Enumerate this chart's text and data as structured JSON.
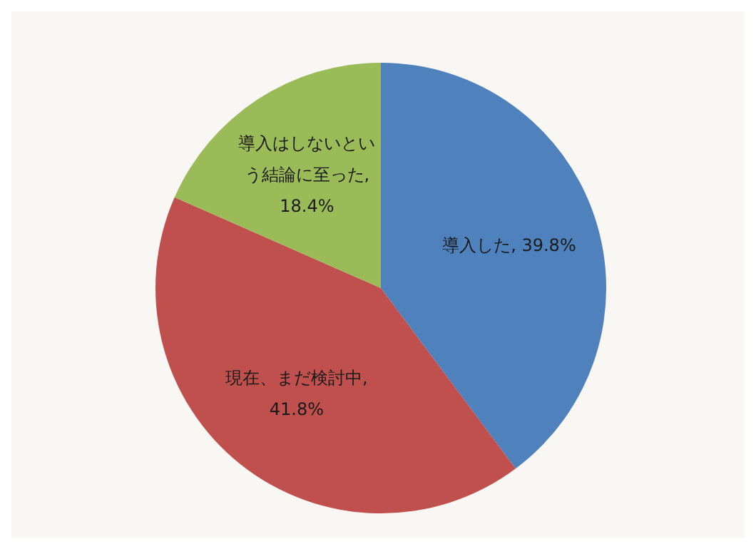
{
  "chart_data": {
    "type": "pie",
    "categories": [
      "導入した",
      "現在、まだ検討中",
      "導入はしないという結論に至った"
    ],
    "values": [
      39.8,
      41.8,
      18.4
    ],
    "colors": [
      "#4f81bd",
      "#c0504d",
      "#9bbb59"
    ],
    "value_labels": [
      ", 39.8%",
      ", 41.8%",
      ", 18.4%"
    ]
  }
}
